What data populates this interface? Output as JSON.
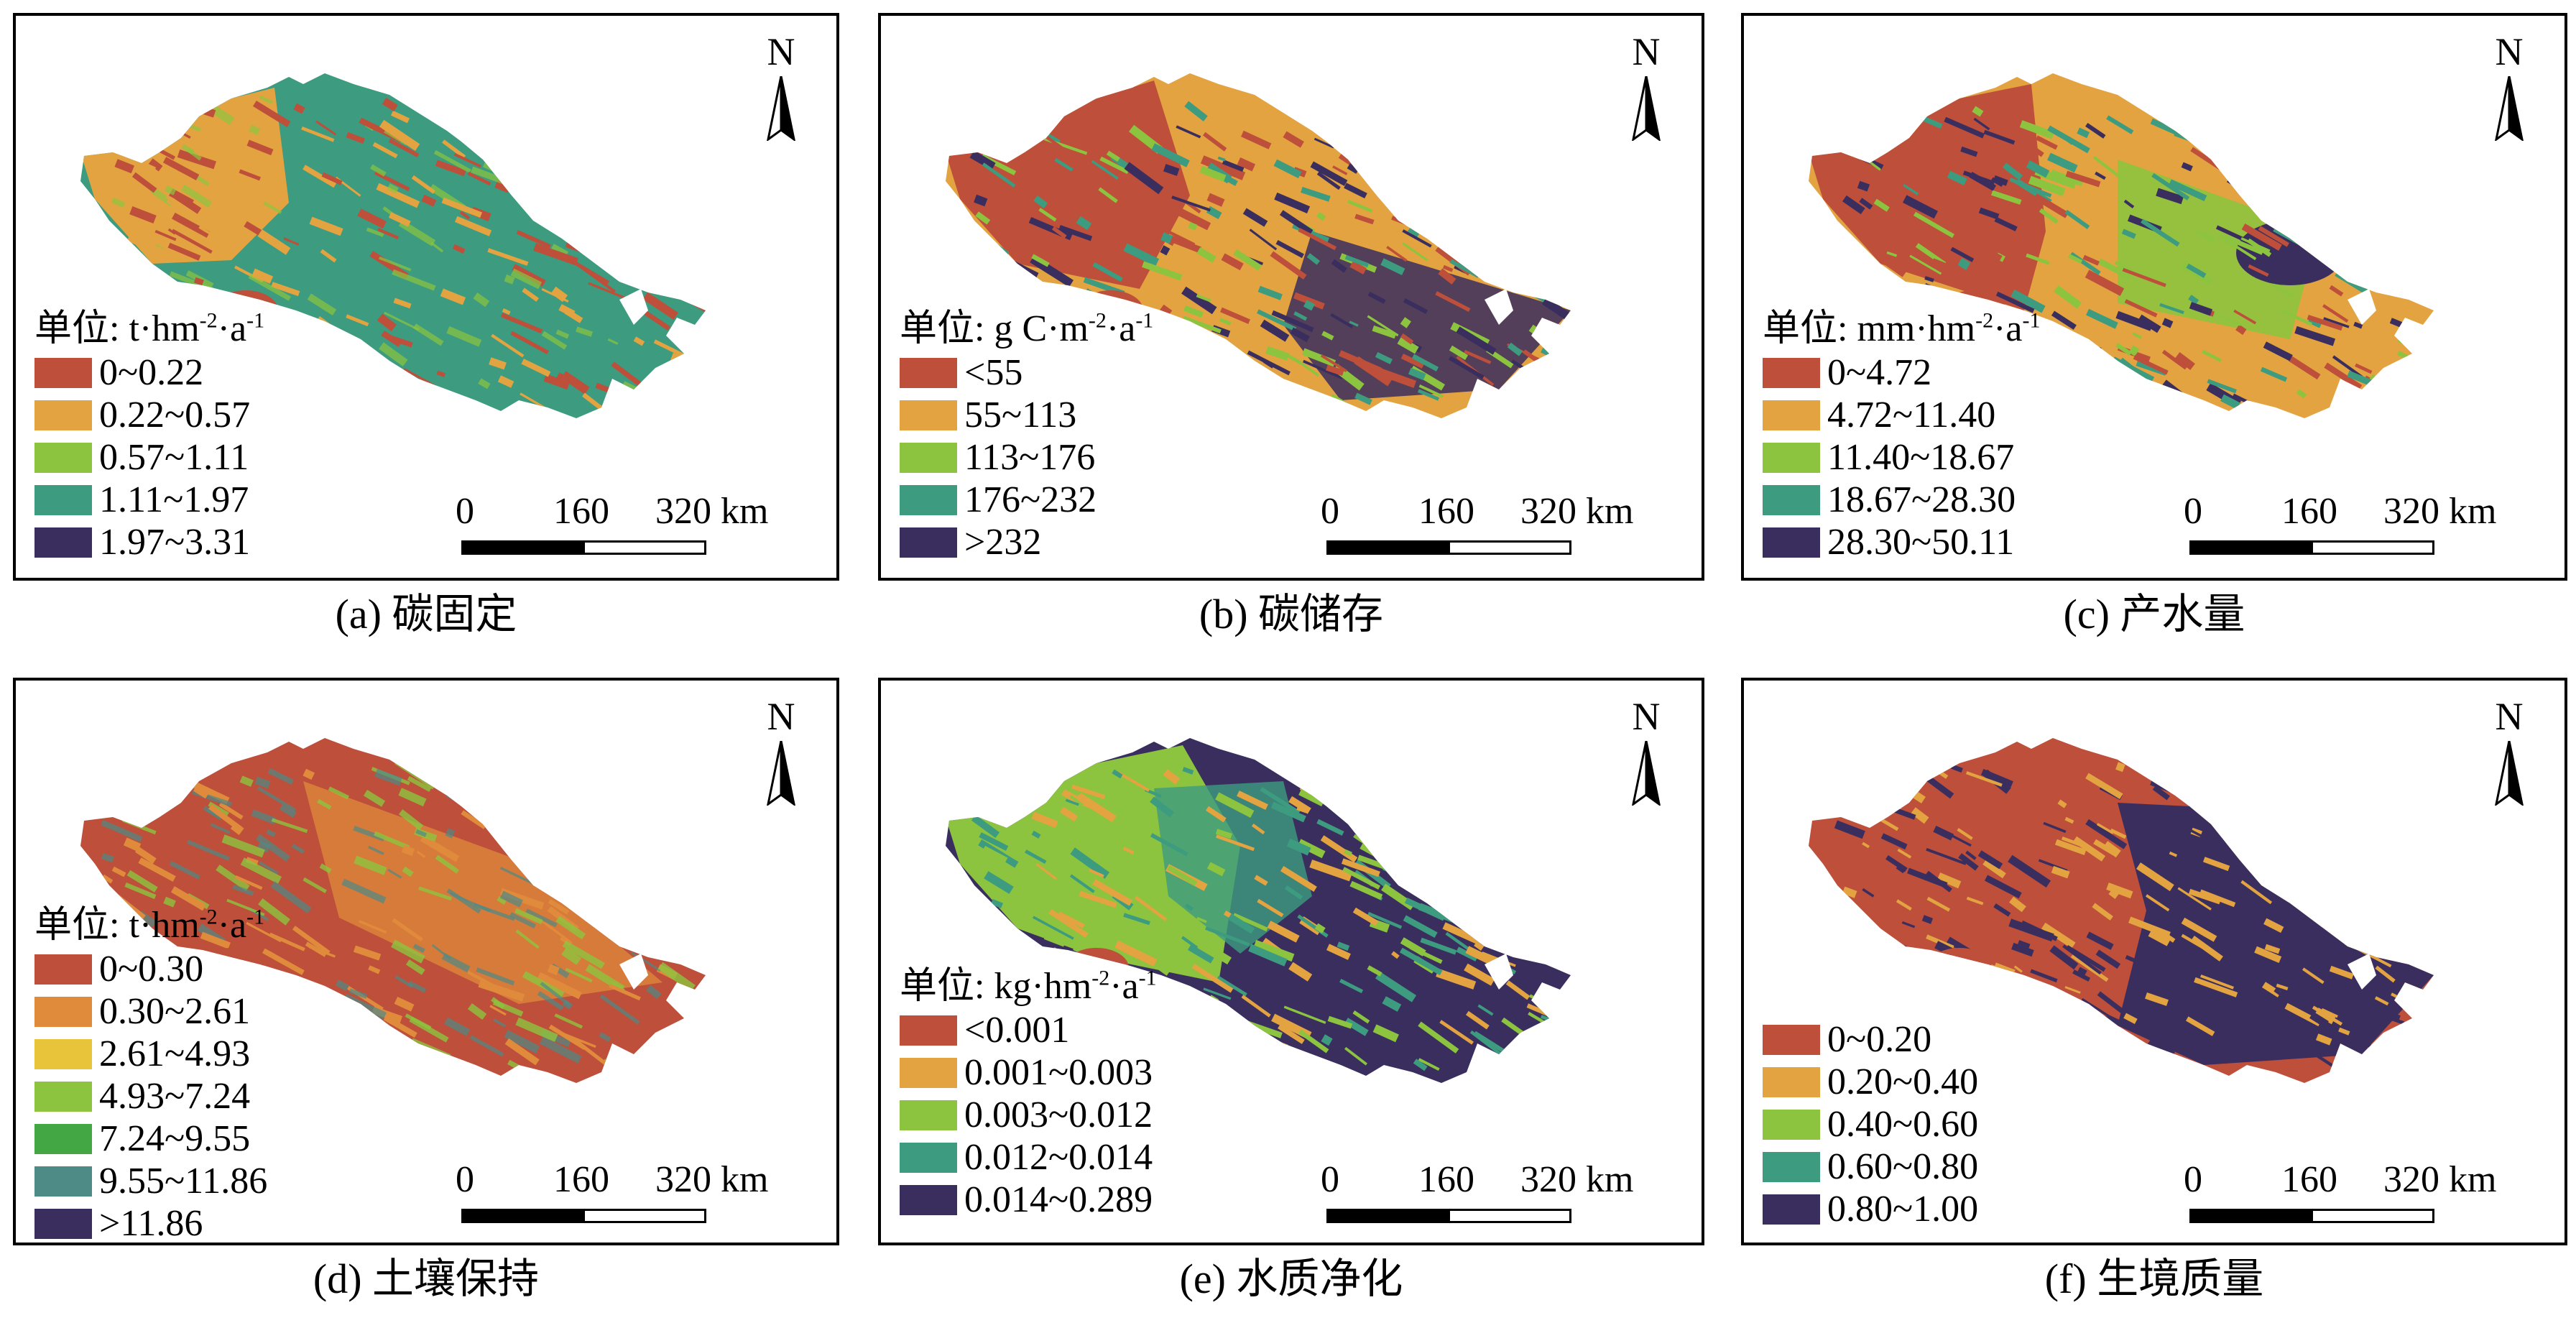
{
  "colors": {
    "red": "#BD4F3B",
    "orange": "#E3A340",
    "lightgreen": "#8CC43F",
    "teal": "#3D9B7F",
    "navy": "#3A2E5F",
    "orange2": "#E08A3C",
    "yellow": "#E8C43B",
    "green": "#43A843",
    "tealblue": "#4E8A86"
  },
  "north_label": "N",
  "scale": {
    "t0": "0",
    "t1": "160",
    "t2": "320 km"
  },
  "panels": [
    {
      "caption": "(a) 碳固定",
      "unit_prefix": "单位: t·hm",
      "unit_sup1": "-2",
      "unit_mid": "·a",
      "unit_sup2": "-1",
      "legend": [
        "0~0.22",
        "0.22~0.57",
        "0.57~1.11",
        "1.11~1.97",
        "1.97~3.31"
      ],
      "swatches": [
        "#BD4F3B",
        "#E3A340",
        "#8CC43F",
        "#3D9B7F",
        "#3A2E5F"
      ]
    },
    {
      "caption": "(b) 碳储存",
      "unit_prefix": "单位: g C·m",
      "unit_sup1": "-2",
      "unit_mid": "·a",
      "unit_sup2": "-1",
      "legend": [
        "<55",
        "55~113",
        "113~176",
        "176~232",
        ">232"
      ],
      "swatches": [
        "#BD4F3B",
        "#E3A340",
        "#8CC43F",
        "#3D9B7F",
        "#3A2E5F"
      ]
    },
    {
      "caption": "(c) 产水量",
      "unit_prefix": "单位: mm·hm",
      "unit_sup1": "-2",
      "unit_mid": "·a",
      "unit_sup2": "-1",
      "legend": [
        "0~4.72",
        "4.72~11.40",
        "11.40~18.67",
        "18.67~28.30",
        "28.30~50.11"
      ],
      "swatches": [
        "#BD4F3B",
        "#E3A340",
        "#8CC43F",
        "#3D9B7F",
        "#3A2E5F"
      ]
    },
    {
      "caption": "(d) 土壤保持",
      "unit_prefix": "单位: t·hm",
      "unit_sup1": "-2",
      "unit_mid": "·a",
      "unit_sup2": "-1",
      "legend": [
        "0~0.30",
        "0.30~2.61",
        "2.61~4.93",
        "4.93~7.24",
        "7.24~9.55",
        "9.55~11.86",
        ">11.86"
      ],
      "swatches": [
        "#BD4F3B",
        "#E08A3C",
        "#E8C43B",
        "#8CC43F",
        "#43A843",
        "#4E8A86",
        "#3A2E5F"
      ]
    },
    {
      "caption": "(e) 水质净化",
      "unit_prefix": "单位: kg·hm",
      "unit_sup1": "-2",
      "unit_mid": "·a",
      "unit_sup2": "-1",
      "legend": [
        "<0.001",
        "0.001~0.003",
        "0.003~0.012",
        "0.012~0.014",
        "0.014~0.289"
      ],
      "swatches": [
        "#BD4F3B",
        "#E3A340",
        "#8CC43F",
        "#3D9B7F",
        "#3A2E5F"
      ]
    },
    {
      "caption": "(f) 生境质量",
      "unit_prefix": "",
      "unit_sup1": "",
      "unit_mid": "",
      "unit_sup2": "",
      "legend": [
        "0~0.20",
        "0.20~0.40",
        "0.40~0.60",
        "0.60~0.80",
        "0.80~1.00"
      ],
      "swatches": [
        "#BD4F3B",
        "#E3A340",
        "#8CC43F",
        "#3D9B7F",
        "#3A2E5F"
      ]
    }
  ]
}
